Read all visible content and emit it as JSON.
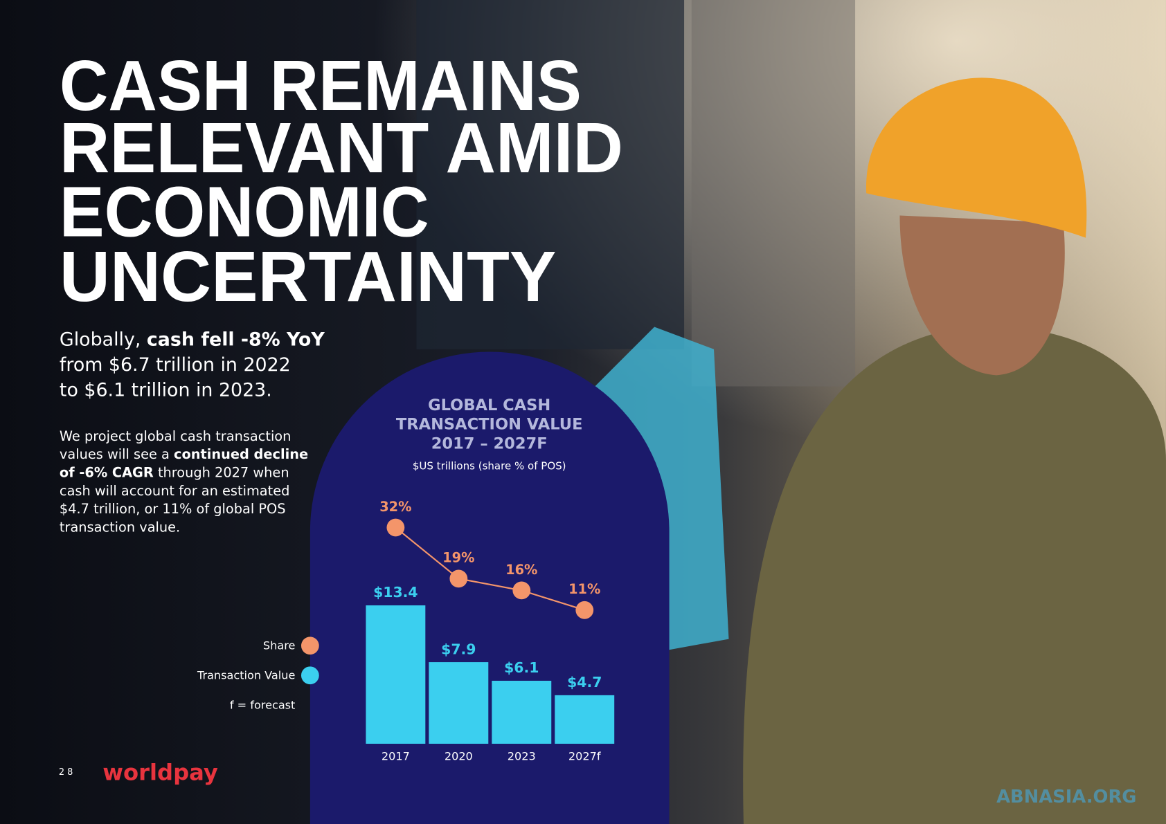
{
  "headline": [
    "CASH REMAINS",
    "RELEVANT AMID",
    "ECONOMIC",
    "UNCERTAINTY"
  ],
  "summary": [
    [
      {
        "text": "Globally, "
      },
      {
        "text": "cash fell -8% YoY",
        "bold": true
      }
    ],
    [
      {
        "text": "from $6.7 trillion in 2022"
      }
    ],
    [
      {
        "text": "to $6.1 trillion in 2023."
      }
    ]
  ],
  "body": [
    [
      {
        "text": "We project global cash transaction"
      }
    ],
    [
      {
        "text": "values will see a "
      },
      {
        "text": "continued decline",
        "bold": true
      }
    ],
    [
      {
        "text": "of -6% CAGR",
        "bold": true
      },
      {
        "text": " through 2027 when"
      }
    ],
    [
      {
        "text": "cash will account for an estimated"
      }
    ],
    [
      {
        "text": "$4.7 trillion, or 11% of global POS"
      }
    ],
    [
      {
        "text": "transaction value."
      }
    ]
  ],
  "footer": {
    "page": "2 8",
    "logo": "worldpay",
    "watermark": "ABNASIA.ORG"
  },
  "chart_data": {
    "type": "combo",
    "title": [
      "GLOBAL CASH",
      "TRANSACTION VALUE",
      "2017 – 2027F"
    ],
    "subtitle": "$US trillions (share % of POS)",
    "categories": [
      "2017",
      "2020",
      "2023",
      "2027f"
    ],
    "series": [
      {
        "name": "Share",
        "type": "line",
        "color": "#f4956a",
        "values": [
          32,
          19,
          16,
          11
        ],
        "value_labels": [
          "32%",
          "19%",
          "16%",
          "11%"
        ]
      },
      {
        "name": "Transaction Value",
        "type": "bar",
        "color": "#3bcfef",
        "values": [
          13.4,
          7.9,
          6.1,
          4.7
        ],
        "value_labels": [
          "$13.4",
          "$7.9",
          "$6.1",
          "$4.7"
        ]
      }
    ],
    "note": "f = forecast"
  }
}
